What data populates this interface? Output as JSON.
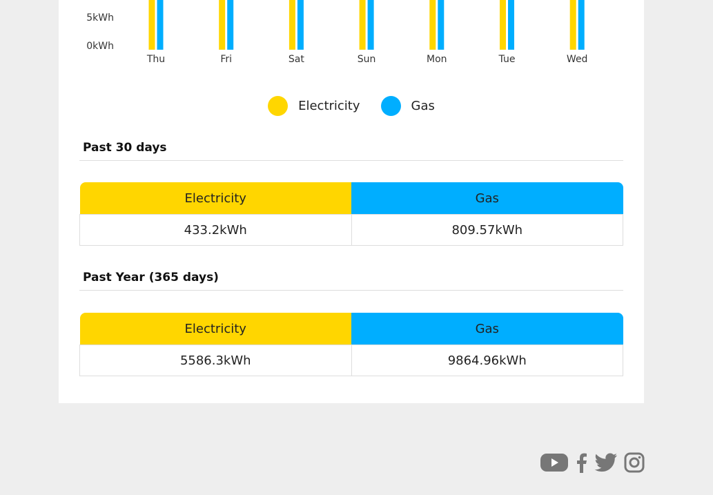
{
  "chart_data": {
    "type": "bar",
    "categories": [
      "Thu",
      "Fri",
      "Sat",
      "Sun",
      "Mon",
      "Tue",
      "Wed"
    ],
    "series": [
      {
        "name": "Electricity",
        "color": "#ffd600"
      },
      {
        "name": "Gas",
        "color": "#00aeff"
      }
    ],
    "y_ticks": [
      "5kWh",
      "0kWh"
    ]
  },
  "legend": {
    "electricity_label": "Electricity",
    "electricity_color": "#ffd600",
    "gas_label": "Gas",
    "gas_color": "#00aeff"
  },
  "past30": {
    "title": "Past 30 days",
    "electricity_header": "Electricity",
    "gas_header": "Gas",
    "electricity_value": "433.2kWh",
    "gas_value": "809.57kWh"
  },
  "pastYear": {
    "title": "Past Year (365 days)",
    "electricity_header": "Electricity",
    "gas_header": "Gas",
    "electricity_value": "5586.3kWh",
    "gas_value": "9864.96kWh"
  },
  "social": {
    "icons": [
      "youtube-icon",
      "facebook-icon",
      "twitter-icon",
      "instagram-icon"
    ],
    "icon_color": "#777777"
  }
}
